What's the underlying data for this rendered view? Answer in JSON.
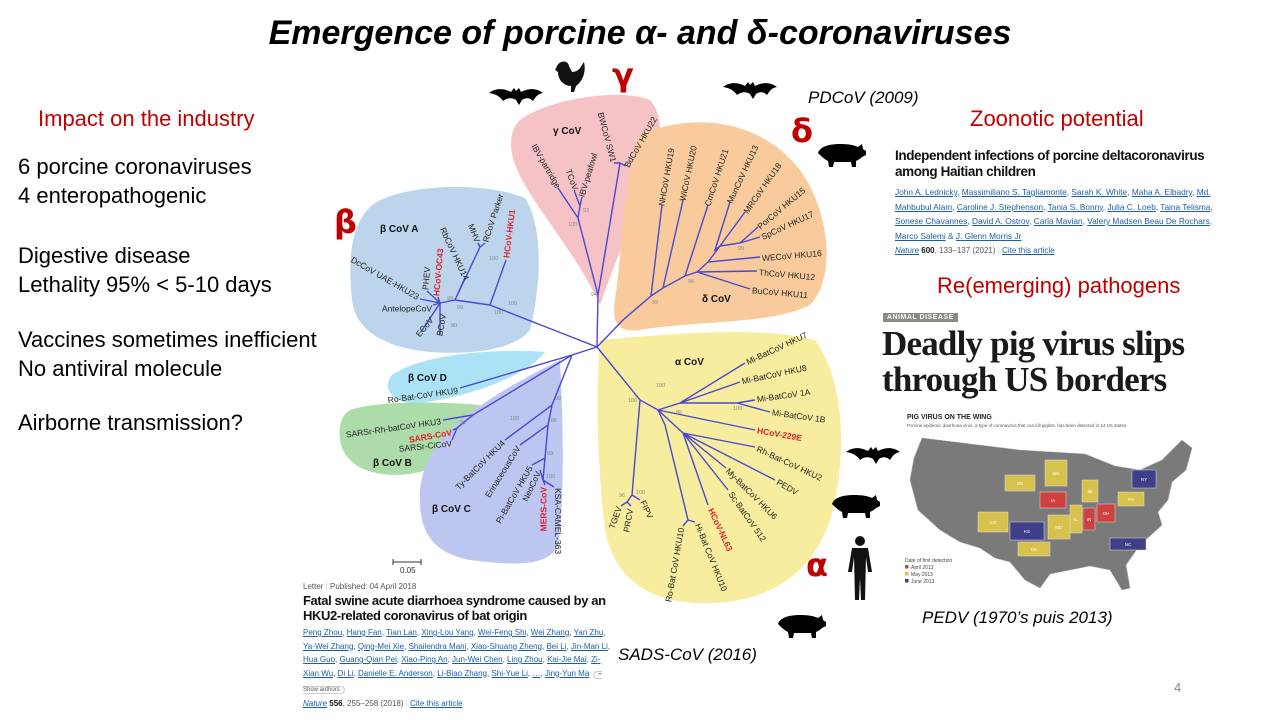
{
  "title": "Emergence of porcine α- and δ-coronaviruses",
  "left": {
    "heading": "Impact on the industry",
    "lines": [
      "6 porcine coronaviruses",
      "4 enteropathogenic",
      "Digestive disease",
      "Lethality 95% < 5-10 days",
      "Vaccines sometimes inefficient",
      "No antiviral molecule",
      "Airborne transmission?"
    ]
  },
  "right": {
    "zoonotic_heading": "Zoonotic potential",
    "reemerging_heading": "Re(emerging) pathogens"
  },
  "annotations": {
    "pdcov": "PDCoV (2009)",
    "sads": "SADS-CoV (2016)",
    "pedv": "PEDV (1970’s puis 2013)"
  },
  "greek": {
    "gamma": "γ",
    "delta": "δ",
    "beta": "β",
    "alpha": "α"
  },
  "colors": {
    "greek": "#c00000",
    "tree_branch": "#4a48d0",
    "human_cov": "#e0202a",
    "clade_beta_a": "#bcd5ec",
    "clade_gamma": "#f5c3c6",
    "clade_delta": "#f9cb9c",
    "clade_alpha": "#f8ec9e",
    "clade_beta_d": "#ace2f6",
    "clade_beta_b": "#acdcaa",
    "clade_beta_c": "#bcc6f0"
  },
  "icons": [
    "bat-icon",
    "chicken-icon",
    "pig-icon",
    "human-icon"
  ],
  "tree": {
    "clades": {
      "beta_a": "β CoV A",
      "gamma": "γ CoV",
      "delta": "δ CoV",
      "alpha": "α CoV",
      "beta_d": "β CoV D",
      "beta_b": "β CoV B",
      "beta_c": "β CoV C"
    },
    "scale": "0.05",
    "leaves": {
      "beta_a": [
        {
          "name": "RbCoV HKU14"
        },
        {
          "name": "MHV"
        },
        {
          "name": "RCoV Parker"
        },
        {
          "name": "HCoV-HKU1",
          "human": true
        },
        {
          "name": "HCoV-OC43",
          "human": true
        },
        {
          "name": "PHEV"
        },
        {
          "name": "DcCoV UAE-HKU23"
        },
        {
          "name": "AntelopeCoV"
        },
        {
          "name": "ECoV"
        },
        {
          "name": "BCoV"
        }
      ],
      "gamma": [
        {
          "name": "IBV-partridge"
        },
        {
          "name": "TCoV"
        },
        {
          "name": "IBV-peafowl"
        },
        {
          "name": "BWCoV SW1"
        },
        {
          "name": "BdCoV HKU22"
        }
      ],
      "delta": [
        {
          "name": "NHCoV HKU19"
        },
        {
          "name": "WiCoV HKU20"
        },
        {
          "name": "CmCoV HKU21"
        },
        {
          "name": "MunCoV HKU13"
        },
        {
          "name": "MRCoV HKU18"
        },
        {
          "name": "PorCoV HKU15"
        },
        {
          "name": "SpCoV HKU17"
        },
        {
          "name": "WECoV HKU16"
        },
        {
          "name": "ThCoV HKU12"
        },
        {
          "name": "BuCoV HKU11"
        }
      ],
      "alpha": [
        {
          "name": "Mi-BatCoV HKU7"
        },
        {
          "name": "Mi-BatCoV HKU8"
        },
        {
          "name": "Mi-BatCoV 1A"
        },
        {
          "name": "Mi-BatCoV 1B"
        },
        {
          "name": "HCoV-229E",
          "human": true
        },
        {
          "name": "Rh-Bat-CoV HKU2"
        },
        {
          "name": "PEDV"
        },
        {
          "name": "My-BatCoV HKU6"
        },
        {
          "name": "Sc-BatCoV 512"
        },
        {
          "name": "HCoV-NL63",
          "human": true
        },
        {
          "name": "Hi-Bat CoV HKU10"
        },
        {
          "name": "Ro-Bat CoV HKU10"
        },
        {
          "name": "TGEV"
        },
        {
          "name": "PRCV"
        },
        {
          "name": "FIPV"
        }
      ],
      "beta_d": [
        {
          "name": "Ro-Bat-CoV HKU9"
        }
      ],
      "beta_b": [
        {
          "name": "SARSr-Rh-batCoV HKU3"
        },
        {
          "name": "SARS-CoV",
          "human": true
        },
        {
          "name": "SARSr-CiCoV"
        }
      ],
      "beta_c": [
        {
          "name": "Ty-BatCoV HKU4"
        },
        {
          "name": "ErinaceousCoV"
        },
        {
          "name": "Pi-BatCoV HKU5"
        },
        {
          "name": "NeoCoV"
        },
        {
          "name": "MERS-CoV",
          "human": true
        },
        {
          "name": "KSA-CAMEL-363"
        }
      ]
    },
    "bootstrap": [
      "100",
      "99",
      "99",
      "80",
      "100",
      "100",
      "93",
      "100",
      "94",
      "99",
      "96",
      "99",
      "100",
      "85",
      "100",
      "100",
      "96",
      "100",
      "100",
      "99",
      "99",
      "86",
      "99",
      "100"
    ]
  },
  "article_pdcov": {
    "title": "Independent infections of porcine deltacoronavirus among Haitian children",
    "authors": [
      "John A. Lednicky",
      "Massimiliano S. Tagliamonte",
      "Sarah K. White",
      "Maha A. Elbadry",
      "Md. Mahbubul Alam",
      "Caroline J. Stephenson",
      "Tania S. Bonny",
      "Julia C. Loeb",
      "Taina Telisma",
      "Sonese Chavannes",
      "David A. Ostrov",
      "Carla Mavian",
      "Valery Madsen Beau De Rochars",
      "Marco Salemi",
      "J. Glenn Morris Jr"
    ],
    "journal": "Nature",
    "volume": "600",
    "pages": ", 133–137 (2021)",
    "cite": "Cite this article"
  },
  "article_sads": {
    "type": "Letter",
    "published": "Published: 04 April 2018",
    "title": "Fatal swine acute diarrhoea syndrome caused by an HKU2-related coronavirus of bat origin",
    "authors": [
      "Peng Zhou",
      "Hang Fan",
      "Tian Lan",
      "Xing-Lou Yang",
      "Wei-Feng Shi",
      "Wei Zhang",
      "Yan Zhu",
      "Ya-Wei Zhang",
      "Qing-Mei Xie",
      "Shailendra Mani",
      "Xiao-Shuang Zheng",
      "Bei Li",
      "Jin-Man Li",
      "Hua Guo",
      "Guang-Qian Pei",
      "Xiao-Ping An",
      "Jun-Wei Chen",
      "Ling Zhou",
      "Kai-Jie Mai",
      "Zi-Xian Wu",
      "Di Li",
      "Danielle E. Anderson",
      "Li-Biao Zhang",
      "Shi-Yue Li",
      "…",
      "Jing-Yun Ma"
    ],
    "show_authors": "+ Show authors",
    "journal": "Nature",
    "volume": "556",
    "pages": ", 255–258 (2018)",
    "cite": "Cite this article"
  },
  "news": {
    "tag": "ANIMAL DISEASE",
    "headline_1": "Deadly pig virus slips",
    "headline_2": "through US borders",
    "map_title": "PIG VIRUS ON THE WING",
    "map_subtitle": "Porcine epidemic diarrhoea virus, a type of coronavirus that can kill piglets, has been detected in 14 US states.",
    "legend_title": "Date of first detection",
    "legend": [
      {
        "label": "April 2013",
        "color": "#d0403e",
        "states": [
          "IA",
          "IN",
          "OH"
        ]
      },
      {
        "label": "May 2013",
        "color": "#d7c24e",
        "states": [
          "SD",
          "MN",
          "MI",
          "CO",
          "IL",
          "MO",
          "OK",
          "PA"
        ]
      },
      {
        "label": "June 2013",
        "color": "#3f3f88",
        "states": [
          "KS",
          "NY",
          "NC"
        ]
      }
    ]
  },
  "page_number": "4"
}
